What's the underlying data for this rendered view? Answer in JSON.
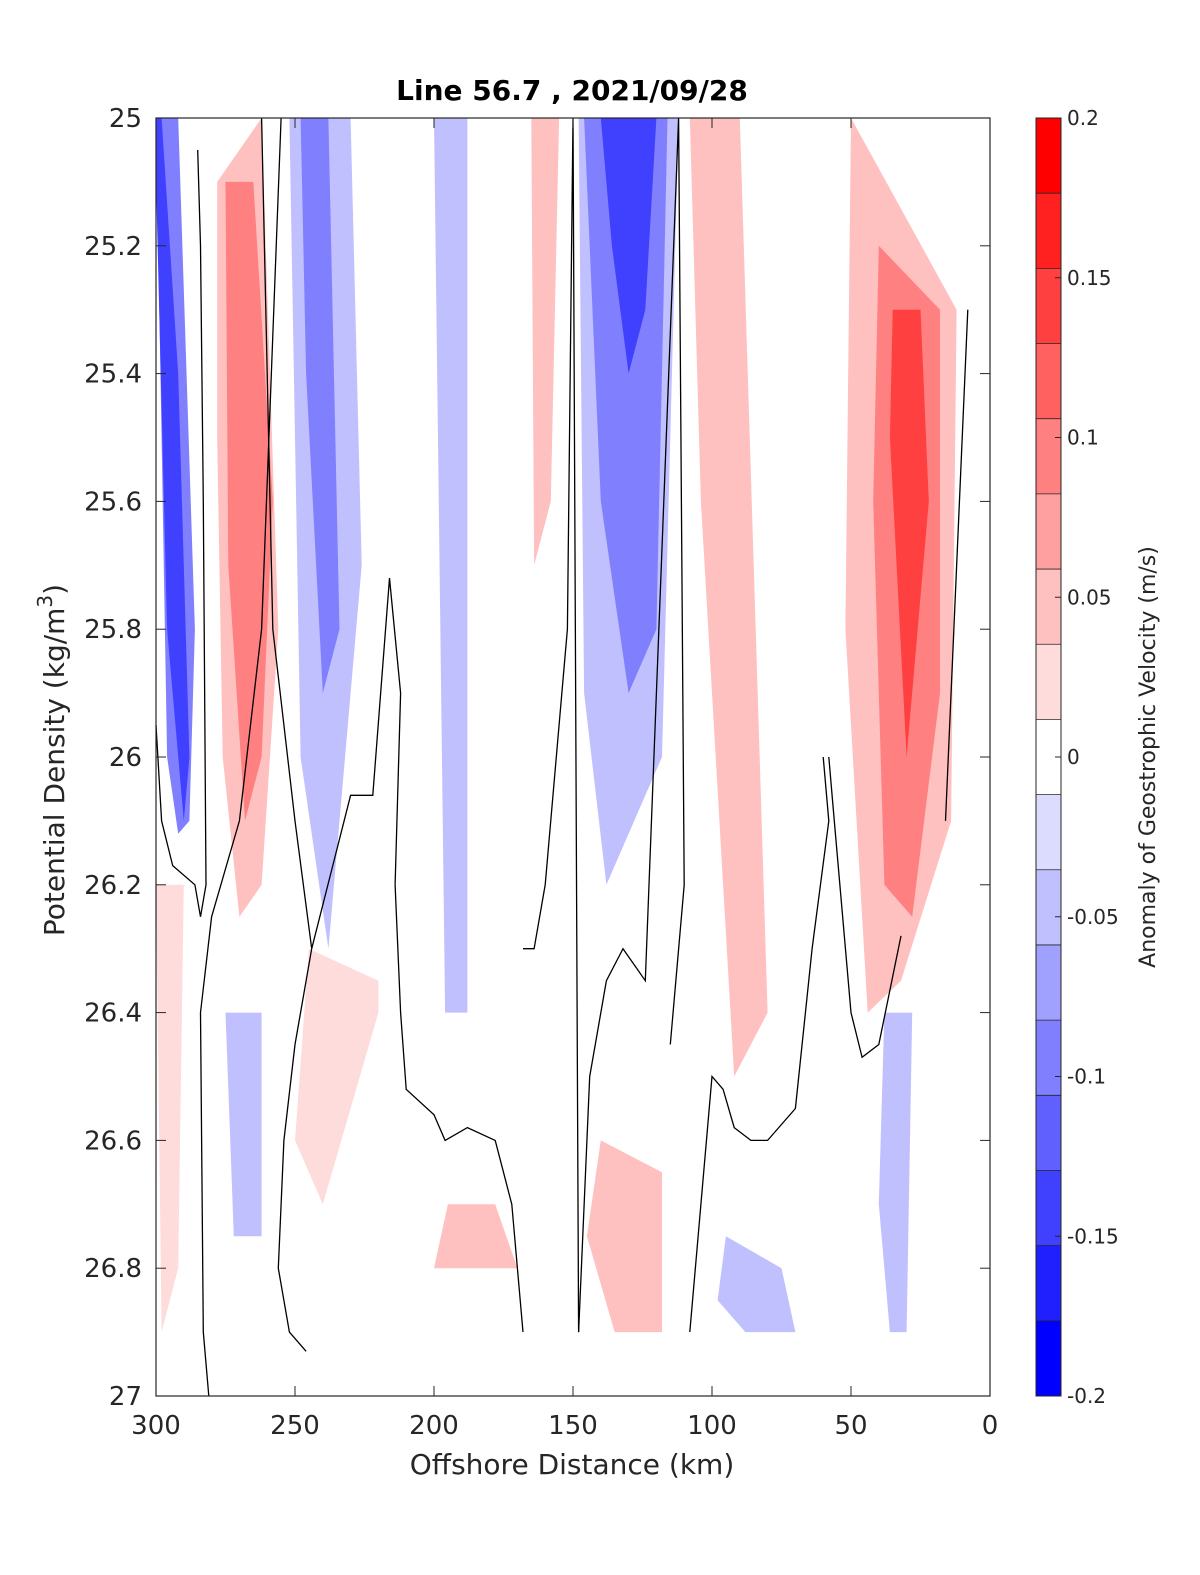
{
  "chart_data": {
    "type": "heatmap",
    "title": "Line 56.7 , 2021/09/28",
    "xlabel": "Offshore Distance (km)",
    "ylabel_main": "Potential Density (kg/m",
    "ylabel_sup": "3",
    "ylabel_close": ")",
    "colorbar_label": "Anomaly of Geostrophic Velocity (m/s)",
    "xlim": [
      300,
      0
    ],
    "ylim": [
      27,
      25
    ],
    "x_reversed": true,
    "y_reversed": true,
    "x_ticks": [
      "300",
      "250",
      "200",
      "150",
      "100",
      "50",
      "0"
    ],
    "y_ticks": [
      "25",
      "25.2",
      "25.4",
      "25.6",
      "25.8",
      "26",
      "26.2",
      "26.4",
      "26.6",
      "26.8",
      "27"
    ],
    "colorbar": {
      "clim": [
        -0.2,
        0.2
      ],
      "levels": [
        -0.2,
        -0.175,
        -0.15,
        -0.125,
        -0.1,
        -0.075,
        -0.05,
        -0.025,
        0.025,
        0.05,
        0.075,
        0.1,
        0.125,
        0.15,
        0.175,
        0.2
      ],
      "tick_labels": [
        "0.2",
        "0.15",
        "0.1",
        "0.05",
        "0",
        "-0.05",
        "-0.1",
        "-0.15",
        "-0.2"
      ],
      "colors_top_to_bottom": [
        "#ff0000",
        "#ff2020",
        "#ff4040",
        "#ff6060",
        "#ff8080",
        "#ffa0a0",
        "#ffc0c0",
        "#ffdcdc",
        "#ffffff",
        "#dcdcff",
        "#c0c0ff",
        "#a0a0ff",
        "#8080ff",
        "#6060ff",
        "#4040ff",
        "#2020ff",
        "#0000ff"
      ]
    },
    "grid": false,
    "regions": [
      {
        "level": -0.15,
        "x": [
          300,
          298,
          292,
          288,
          290,
          296,
          300
        ],
        "y": [
          25.0,
          25.0,
          25.4,
          26.0,
          26.1,
          25.8,
          25.1
        ]
      },
      {
        "level": -0.1,
        "x": [
          300,
          292,
          286,
          288,
          292,
          296,
          300
        ],
        "y": [
          25.0,
          25.0,
          25.8,
          26.1,
          26.12,
          26.0,
          25.0
        ]
      },
      {
        "level": 0.1,
        "x": [
          275,
          265,
          258,
          262,
          268,
          274
        ],
        "y": [
          25.1,
          25.1,
          25.6,
          26.0,
          26.1,
          25.7
        ]
      },
      {
        "level": 0.05,
        "x": [
          278,
          262,
          256,
          262,
          270,
          276,
          278
        ],
        "y": [
          25.1,
          25.0,
          25.8,
          26.2,
          26.25,
          26.0,
          25.5
        ]
      },
      {
        "level": -0.1,
        "x": [
          248,
          238,
          234,
          240,
          246
        ],
        "y": [
          25.0,
          25.0,
          25.8,
          25.9,
          25.4
        ]
      },
      {
        "level": -0.05,
        "x": [
          252,
          230,
          226,
          238,
          248
        ],
        "y": [
          25.0,
          25.0,
          25.7,
          26.3,
          26.0
        ]
      },
      {
        "level": -0.05,
        "x": [
          200,
          188,
          188,
          196
        ],
        "y": [
          25.0,
          25.0,
          26.4,
          26.4
        ]
      },
      {
        "level": 0.05,
        "x": [
          165,
          155,
          158,
          164
        ],
        "y": [
          25.0,
          25.0,
          25.6,
          25.7
        ]
      },
      {
        "level": -0.15,
        "x": [
          140,
          120,
          124,
          130,
          136
        ],
        "y": [
          25.0,
          25.0,
          25.3,
          25.4,
          25.2
        ]
      },
      {
        "level": -0.1,
        "x": [
          146,
          116,
          120,
          130,
          140
        ],
        "y": [
          25.0,
          25.0,
          25.8,
          25.9,
          25.6
        ]
      },
      {
        "level": -0.05,
        "x": [
          148,
          112,
          118,
          138,
          146
        ],
        "y": [
          25.0,
          25.0,
          26.0,
          26.2,
          25.9
        ]
      },
      {
        "level": 0.05,
        "x": [
          108,
          90,
          80,
          92,
          104
        ],
        "y": [
          25.0,
          25.0,
          26.4,
          26.5,
          25.6
        ]
      },
      {
        "level": 0.15,
        "x": [
          35,
          25,
          22,
          30,
          36
        ],
        "y": [
          25.3,
          25.3,
          25.6,
          26.0,
          25.5
        ]
      },
      {
        "level": 0.1,
        "x": [
          40,
          18,
          18,
          28,
          38,
          42
        ],
        "y": [
          25.2,
          25.3,
          25.9,
          26.25,
          26.2,
          25.6
        ]
      },
      {
        "level": 0.05,
        "x": [
          50,
          12,
          14,
          32,
          44,
          52
        ],
        "y": [
          25.0,
          25.3,
          26.1,
          26.35,
          26.4,
          25.8
        ]
      },
      {
        "level": -0.05,
        "x": [
          38,
          28,
          30,
          36,
          40
        ],
        "y": [
          26.4,
          26.4,
          26.9,
          26.9,
          26.7
        ]
      },
      {
        "level": -0.05,
        "x": [
          95,
          75,
          70,
          88,
          98
        ],
        "y": [
          26.75,
          26.8,
          26.9,
          26.9,
          26.85
        ]
      },
      {
        "level": 0.05,
        "x": [
          140,
          118,
          118,
          135,
          145
        ],
        "y": [
          26.6,
          26.65,
          26.9,
          26.9,
          26.75
        ]
      },
      {
        "level": 0.05,
        "x": [
          195,
          178,
          170,
          200
        ],
        "y": [
          26.7,
          26.7,
          26.8,
          26.8
        ]
      },
      {
        "level": -0.05,
        "x": [
          275,
          262,
          262,
          272
        ],
        "y": [
          26.4,
          26.4,
          26.75,
          26.75
        ]
      },
      {
        "level": 0.025,
        "x": [
          300,
          290,
          292,
          298
        ],
        "y": [
          26.2,
          26.2,
          26.8,
          26.9
        ]
      },
      {
        "level": 0.025,
        "x": [
          245,
          220,
          220,
          240,
          250
        ],
        "y": [
          26.3,
          26.35,
          26.4,
          26.7,
          26.6
        ]
      }
    ],
    "zero_contours": [
      {
        "x": [
          300,
          298,
          294,
          286,
          284,
          282,
          283,
          284,
          285
        ],
        "y": [
          25.95,
          26.1,
          26.17,
          26.2,
          26.25,
          26.2,
          25.6,
          25.2,
          25.05
        ]
      },
      {
        "x": [
          255,
          262,
          270,
          280,
          284,
          283,
          281
        ],
        "y": [
          25.0,
          25.8,
          26.1,
          26.25,
          26.4,
          26.9,
          27.0
        ]
      },
      {
        "x": [
          262,
          258,
          250,
          244,
          230,
          222,
          216,
          212,
          214
        ],
        "y": [
          25.0,
          25.8,
          26.1,
          26.3,
          26.06,
          26.06,
          25.72,
          25.9,
          26.2
        ]
      },
      {
        "x": [
          244,
          250,
          254,
          256,
          252,
          246
        ],
        "y": [
          26.3,
          26.45,
          26.6,
          26.8,
          26.9,
          26.93
        ]
      },
      {
        "x": [
          214,
          212,
          210,
          200,
          196,
          188,
          178,
          172,
          168
        ],
        "y": [
          26.2,
          26.4,
          26.52,
          26.56,
          26.6,
          26.58,
          26.6,
          26.7,
          26.9
        ]
      },
      {
        "x": [
          168,
          164,
          160,
          152,
          150,
          148
        ],
        "y": [
          26.3,
          26.3,
          26.2,
          25.8,
          25.0,
          26.9
        ]
      },
      {
        "x": [
          115,
          110,
          112,
          124,
          132,
          138,
          144,
          148
        ],
        "y": [
          26.45,
          26.2,
          25.0,
          26.35,
          26.3,
          26.35,
          26.5,
          26.9
        ]
      },
      {
        "x": [
          108,
          100,
          96,
          92,
          86,
          80,
          70,
          64,
          58,
          60
        ],
        "y": [
          26.9,
          26.5,
          26.52,
          26.58,
          26.6,
          26.6,
          26.55,
          26.3,
          26.1,
          26.0
        ]
      },
      {
        "x": [
          58,
          56,
          50,
          46,
          40,
          32
        ],
        "y": [
          26.0,
          26.1,
          26.4,
          26.47,
          26.45,
          26.28
        ]
      },
      {
        "x": [
          16,
          8
        ],
        "y": [
          26.1,
          25.3
        ]
      }
    ]
  }
}
